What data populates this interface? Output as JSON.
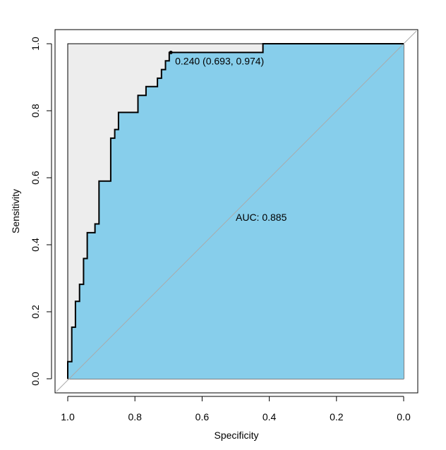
{
  "chart_data": {
    "type": "line",
    "title": "",
    "xlabel": "Specificity",
    "ylabel": "Sensitivity",
    "xlim": [
      1.0,
      0.0
    ],
    "ylim": [
      0.0,
      1.0
    ],
    "x_reversed": true,
    "x_ticks": [
      "1.0",
      "0.8",
      "0.6",
      "0.4",
      "0.2",
      "0.0"
    ],
    "y_ticks": [
      "0.0",
      "0.2",
      "0.4",
      "0.6",
      "0.8",
      "1.0"
    ],
    "grid": false,
    "legend": "none",
    "roc_curve": {
      "specificity": [
        1.0,
        1.0,
        0.988,
        0.988,
        0.977,
        0.977,
        0.965,
        0.965,
        0.953,
        0.953,
        0.942,
        0.942,
        0.919,
        0.919,
        0.907,
        0.907,
        0.872,
        0.872,
        0.86,
        0.86,
        0.849,
        0.849,
        0.791,
        0.791,
        0.767,
        0.767,
        0.733,
        0.733,
        0.721,
        0.721,
        0.709,
        0.709,
        0.698,
        0.698,
        0.419,
        0.419,
        0.0
      ],
      "sensitivity": [
        0.0,
        0.051,
        0.051,
        0.154,
        0.154,
        0.231,
        0.231,
        0.282,
        0.282,
        0.359,
        0.359,
        0.436,
        0.436,
        0.462,
        0.462,
        0.59,
        0.59,
        0.718,
        0.718,
        0.744,
        0.744,
        0.795,
        0.795,
        0.846,
        0.846,
        0.872,
        0.872,
        0.897,
        0.897,
        0.923,
        0.923,
        0.949,
        0.949,
        0.974,
        0.974,
        1.0,
        1.0
      ]
    },
    "colors": {
      "auc_fill": "#87ceeb",
      "outside_fill": "#ededed",
      "curve": "#000000",
      "diagonal": "#aaaaaa"
    },
    "threshold_point": {
      "threshold": 0.24,
      "specificity": 0.693,
      "sensitivity": 0.974,
      "label": "0.240 (0.693, 0.974)"
    },
    "auc": {
      "value": 0.885,
      "label": "AUC: 0.885"
    }
  }
}
